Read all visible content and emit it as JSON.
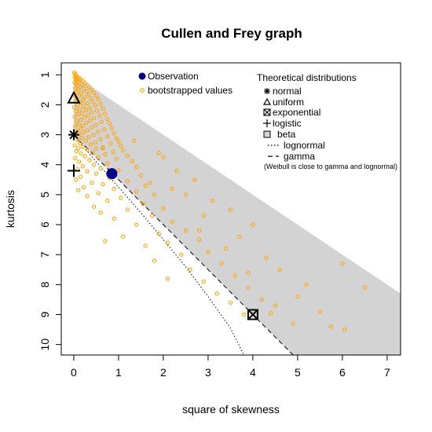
{
  "chart_data": {
    "type": "scatter",
    "title": "Cullen and Frey graph",
    "xlabel": "square of skewness",
    "ylabel": "kurtosis",
    "xlim": [
      -0.28,
      7.3
    ],
    "ylim": [
      10.35,
      0.6
    ],
    "xticks": [
      0,
      1,
      2,
      3,
      4,
      5,
      6,
      7
    ],
    "yticks": [
      1,
      2,
      3,
      4,
      5,
      6,
      7,
      8,
      9,
      10
    ],
    "colors": {
      "observation": "#00008b",
      "bootstrap": "#ffa500",
      "beta_region": "#d3d3d3",
      "markers": "#000000"
    },
    "observation": {
      "label": "Observation",
      "x": 0.85,
      "y": 4.3
    },
    "bootstrap_label": "bootstrapped values",
    "theoretical_title": "Theoretical distributions",
    "theoretical": [
      {
        "name": "normal",
        "marker": "asterisk",
        "x": 0,
        "y": 3
      },
      {
        "name": "uniform",
        "marker": "triangle",
        "x": 0,
        "y": 1.8
      },
      {
        "name": "exponential",
        "marker": "boxed-x",
        "x": 4,
        "y": 9
      },
      {
        "name": "logistic",
        "marker": "plus",
        "x": 0,
        "y": 4.2
      }
    ],
    "legend_beta": "beta",
    "legend_lognormal": "lognormal",
    "legend_gamma": "gamma",
    "legend_note": "(Weibull is close to gamma and lognormal)",
    "legend_position": "top",
    "beta_region": [
      [
        0,
        1
      ],
      [
        7.3,
        8.3
      ],
      [
        7.3,
        10.35
      ],
      [
        4.9,
        10.35
      ],
      [
        0,
        3
      ]
    ],
    "gamma_line": [
      [
        0,
        3
      ],
      [
        4.9,
        10.35
      ]
    ],
    "lognormal_line": [
      [
        0,
        3
      ],
      [
        0.5,
        3.9
      ],
      [
        1,
        4.75
      ],
      [
        1.5,
        5.6
      ],
      [
        2,
        6.5
      ],
      [
        2.5,
        7.4
      ],
      [
        3,
        8.4
      ],
      [
        3.5,
        9.45
      ],
      [
        3.8,
        10.35
      ]
    ],
    "bootstrap_points": [
      [
        0.01,
        0.92
      ],
      [
        0.03,
        0.97
      ],
      [
        0.05,
        1.02
      ],
      [
        0.02,
        1.06
      ],
      [
        0.08,
        1.08
      ],
      [
        0.12,
        1.1
      ],
      [
        0.04,
        1.13
      ],
      [
        0.15,
        1.15
      ],
      [
        0.07,
        1.18
      ],
      [
        0.2,
        1.2
      ],
      [
        0.1,
        1.23
      ],
      [
        0.02,
        1.26
      ],
      [
        0.25,
        1.27
      ],
      [
        0.05,
        1.3
      ],
      [
        0.18,
        1.32
      ],
      [
        0.3,
        1.35
      ],
      [
        0.08,
        1.37
      ],
      [
        0.14,
        1.4
      ],
      [
        0.35,
        1.42
      ],
      [
        0.03,
        1.45
      ],
      [
        0.22,
        1.46
      ],
      [
        0.4,
        1.5
      ],
      [
        0.1,
        1.52
      ],
      [
        0.28,
        1.55
      ],
      [
        0.06,
        1.58
      ],
      [
        0.45,
        1.6
      ],
      [
        0.17,
        1.62
      ],
      [
        0.33,
        1.65
      ],
      [
        0.02,
        1.68
      ],
      [
        0.5,
        1.7
      ],
      [
        0.12,
        1.72
      ],
      [
        0.25,
        1.75
      ],
      [
        0.38,
        1.78
      ],
      [
        0.07,
        1.8
      ],
      [
        0.55,
        1.82
      ],
      [
        0.2,
        1.85
      ],
      [
        0.04,
        1.88
      ],
      [
        0.42,
        1.9
      ],
      [
        0.15,
        1.93
      ],
      [
        0.3,
        1.95
      ],
      [
        0.6,
        1.97
      ],
      [
        0.09,
        2.0
      ],
      [
        0.48,
        2.02
      ],
      [
        0.22,
        2.05
      ],
      [
        0.01,
        2.08
      ],
      [
        0.35,
        2.1
      ],
      [
        0.65,
        2.12
      ],
      [
        0.13,
        2.15
      ],
      [
        0.27,
        2.18
      ],
      [
        0.52,
        2.2
      ],
      [
        0.05,
        2.22
      ],
      [
        0.4,
        2.25
      ],
      [
        0.18,
        2.28
      ],
      [
        0.7,
        2.3
      ],
      [
        0.1,
        2.32
      ],
      [
        0.32,
        2.35
      ],
      [
        0.58,
        2.37
      ],
      [
        0.02,
        2.4
      ],
      [
        0.24,
        2.42
      ],
      [
        0.45,
        2.45
      ],
      [
        0.75,
        2.47
      ],
      [
        0.15,
        2.5
      ],
      [
        0.36,
        2.52
      ],
      [
        0.06,
        2.55
      ],
      [
        0.62,
        2.57
      ],
      [
        0.28,
        2.6
      ],
      [
        0.8,
        2.62
      ],
      [
        0.11,
        2.65
      ],
      [
        0.5,
        2.67
      ],
      [
        0.2,
        2.7
      ],
      [
        0.03,
        2.72
      ],
      [
        0.4,
        2.75
      ],
      [
        0.85,
        2.77
      ],
      [
        0.16,
        2.8
      ],
      [
        0.68,
        2.82
      ],
      [
        0.3,
        2.85
      ],
      [
        0.08,
        2.88
      ],
      [
        0.55,
        2.9
      ],
      [
        0.22,
        2.92
      ],
      [
        0.9,
        2.95
      ],
      [
        0.12,
        2.97
      ],
      [
        0.44,
        3.0
      ],
      [
        0.04,
        3.03
      ],
      [
        0.75,
        3.05
      ],
      [
        0.33,
        3.08
      ],
      [
        0.18,
        3.1
      ],
      [
        0.95,
        3.12
      ],
      [
        0.6,
        3.15
      ],
      [
        0.09,
        3.18
      ],
      [
        0.27,
        3.2
      ],
      [
        1.0,
        3.22
      ],
      [
        0.48,
        3.25
      ],
      [
        0.14,
        3.28
      ],
      [
        0.82,
        3.3
      ],
      [
        0.38,
        3.32
      ],
      [
        0.02,
        3.35
      ],
      [
        1.05,
        3.37
      ],
      [
        0.2,
        3.4
      ],
      [
        0.65,
        3.42
      ],
      [
        0.1,
        3.45
      ],
      [
        0.5,
        3.47
      ],
      [
        0.3,
        3.5
      ],
      [
        1.1,
        3.52
      ],
      [
        0.06,
        3.55
      ],
      [
        0.88,
        3.57
      ],
      [
        0.42,
        3.6
      ],
      [
        0.16,
        3.62
      ],
      [
        0.7,
        3.65
      ],
      [
        1.2,
        3.7
      ],
      [
        0.25,
        3.72
      ],
      [
        0.55,
        3.75
      ],
      [
        0.03,
        3.78
      ],
      [
        0.95,
        3.8
      ],
      [
        0.35,
        3.85
      ],
      [
        1.3,
        3.88
      ],
      [
        0.12,
        3.9
      ],
      [
        0.75,
        3.95
      ],
      [
        0.45,
        4.0
      ],
      [
        0.2,
        4.05
      ],
      [
        1.4,
        4.08
      ],
      [
        0.6,
        4.12
      ],
      [
        0.08,
        4.15
      ],
      [
        1.0,
        4.18
      ],
      [
        0.3,
        4.22
      ],
      [
        0.5,
        4.3
      ],
      [
        1.5,
        4.35
      ],
      [
        0.15,
        4.4
      ],
      [
        0.8,
        4.45
      ],
      [
        0.05,
        4.5
      ],
      [
        1.2,
        4.55
      ],
      [
        0.4,
        4.6
      ],
      [
        0.65,
        4.65
      ],
      [
        1.6,
        4.7
      ],
      [
        0.22,
        4.75
      ],
      [
        0.9,
        4.8
      ],
      [
        0.1,
        4.85
      ],
      [
        1.4,
        4.9
      ],
      [
        0.55,
        4.95
      ],
      [
        1.8,
        5.0
      ],
      [
        0.3,
        5.05
      ],
      [
        1.05,
        5.1
      ],
      [
        0.75,
        5.2
      ],
      [
        1.55,
        5.3
      ],
      [
        0.45,
        5.4
      ],
      [
        2.0,
        5.45
      ],
      [
        1.2,
        5.5
      ],
      [
        0.6,
        5.6
      ],
      [
        1.75,
        5.7
      ],
      [
        0.9,
        5.8
      ],
      [
        2.2,
        5.9
      ],
      [
        1.4,
        6.0
      ],
      [
        0.7,
        6.55
      ],
      [
        2.5,
        6.2
      ],
      [
        1.9,
        6.3
      ],
      [
        1.1,
        6.4
      ],
      [
        2.8,
        6.5
      ],
      [
        2.1,
        6.6
      ],
      [
        1.6,
        6.7
      ],
      [
        3.0,
        6.9
      ],
      [
        2.4,
        7.0
      ],
      [
        1.8,
        7.2
      ],
      [
        3.3,
        7.3
      ],
      [
        2.6,
        7.5
      ],
      [
        2.1,
        7.8
      ],
      [
        3.6,
        7.7
      ],
      [
        2.9,
        7.9
      ],
      [
        3.9,
        8.1
      ],
      [
        3.2,
        8.3
      ],
      [
        4.2,
        8.5
      ],
      [
        3.5,
        8.6
      ],
      [
        4.5,
        8.7
      ],
      [
        3.8,
        9.0
      ],
      [
        4.4,
        8.95
      ],
      [
        4.9,
        9.3
      ],
      [
        5.0,
        8.4
      ],
      [
        5.5,
        8.9
      ],
      [
        6.05,
        9.5
      ],
      [
        5.75,
        9.4
      ],
      [
        6.5,
        8.1
      ],
      [
        6.0,
        7.3
      ],
      [
        1.9,
        3.6
      ],
      [
        2.3,
        4.2
      ],
      [
        1.35,
        3.2
      ],
      [
        2.0,
        3.75
      ],
      [
        2.7,
        4.5
      ],
      [
        0.65,
        3.45
      ],
      [
        3.5,
        5.5
      ],
      [
        3.1,
        5.2
      ],
      [
        4.0,
        6.0
      ],
      [
        4.3,
        7.1
      ],
      [
        3.7,
        6.4
      ],
      [
        2.9,
        5.7
      ],
      [
        2.5,
        5.0
      ],
      [
        1.7,
        4.6
      ],
      [
        4.6,
        7.5
      ],
      [
        5.2,
        8.0
      ],
      [
        3.4,
        6.8
      ],
      [
        2.2,
        4.8
      ],
      [
        2.8,
        6.2
      ],
      [
        3.9,
        7.6
      ]
    ]
  }
}
